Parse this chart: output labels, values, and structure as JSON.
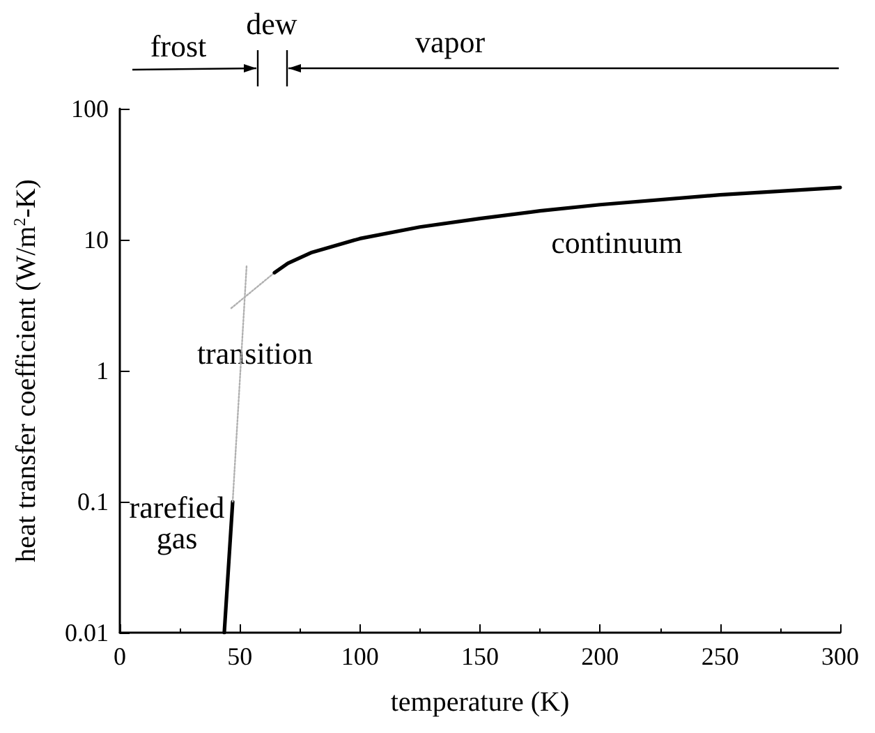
{
  "chart_data": {
    "type": "line",
    "xlabel": "temperature (K)",
    "ylabel": "heat transfer coefficient (W/m$^{2}$-K)",
    "xlim": [
      0,
      300
    ],
    "xticks": [
      0,
      50,
      100,
      150,
      200,
      250,
      300
    ],
    "ylim": [
      0.01,
      100
    ],
    "yticks": [
      0.01,
      0.1,
      1,
      10,
      100
    ],
    "log": "y",
    "grid": false,
    "marker": "none",
    "series": [
      {
        "name": "rarefied\ngas",
        "color": "#000000",
        "x": [
          43.5,
          47
        ],
        "values": [
          0.01,
          0.1
        ],
        "line_style": "solid"
      },
      {
        "name": "transition",
        "color": "#b0b0b0",
        "x": [
          47,
          52.8
        ],
        "values": [
          0.1,
          6.3
        ],
        "line_style": "dotted"
      },
      {
        "color": "#b0b0b0",
        "x": [
          46.4,
          64.4
        ],
        "values": [
          3.0,
          5.6
        ],
        "line_style": "dotted"
      },
      {
        "name": "continuum",
        "color": "#000000",
        "x": [
          64.4,
          70,
          80,
          100,
          125,
          150,
          175,
          200,
          250,
          300
        ],
        "values": [
          5.6,
          6.6,
          8,
          10.2,
          12.5,
          14.5,
          16.6,
          18.5,
          22,
          25
        ],
        "line_style": "solid"
      }
    ],
    "annotations": [
      "frost",
      "dew",
      "vapor"
    ]
  }
}
